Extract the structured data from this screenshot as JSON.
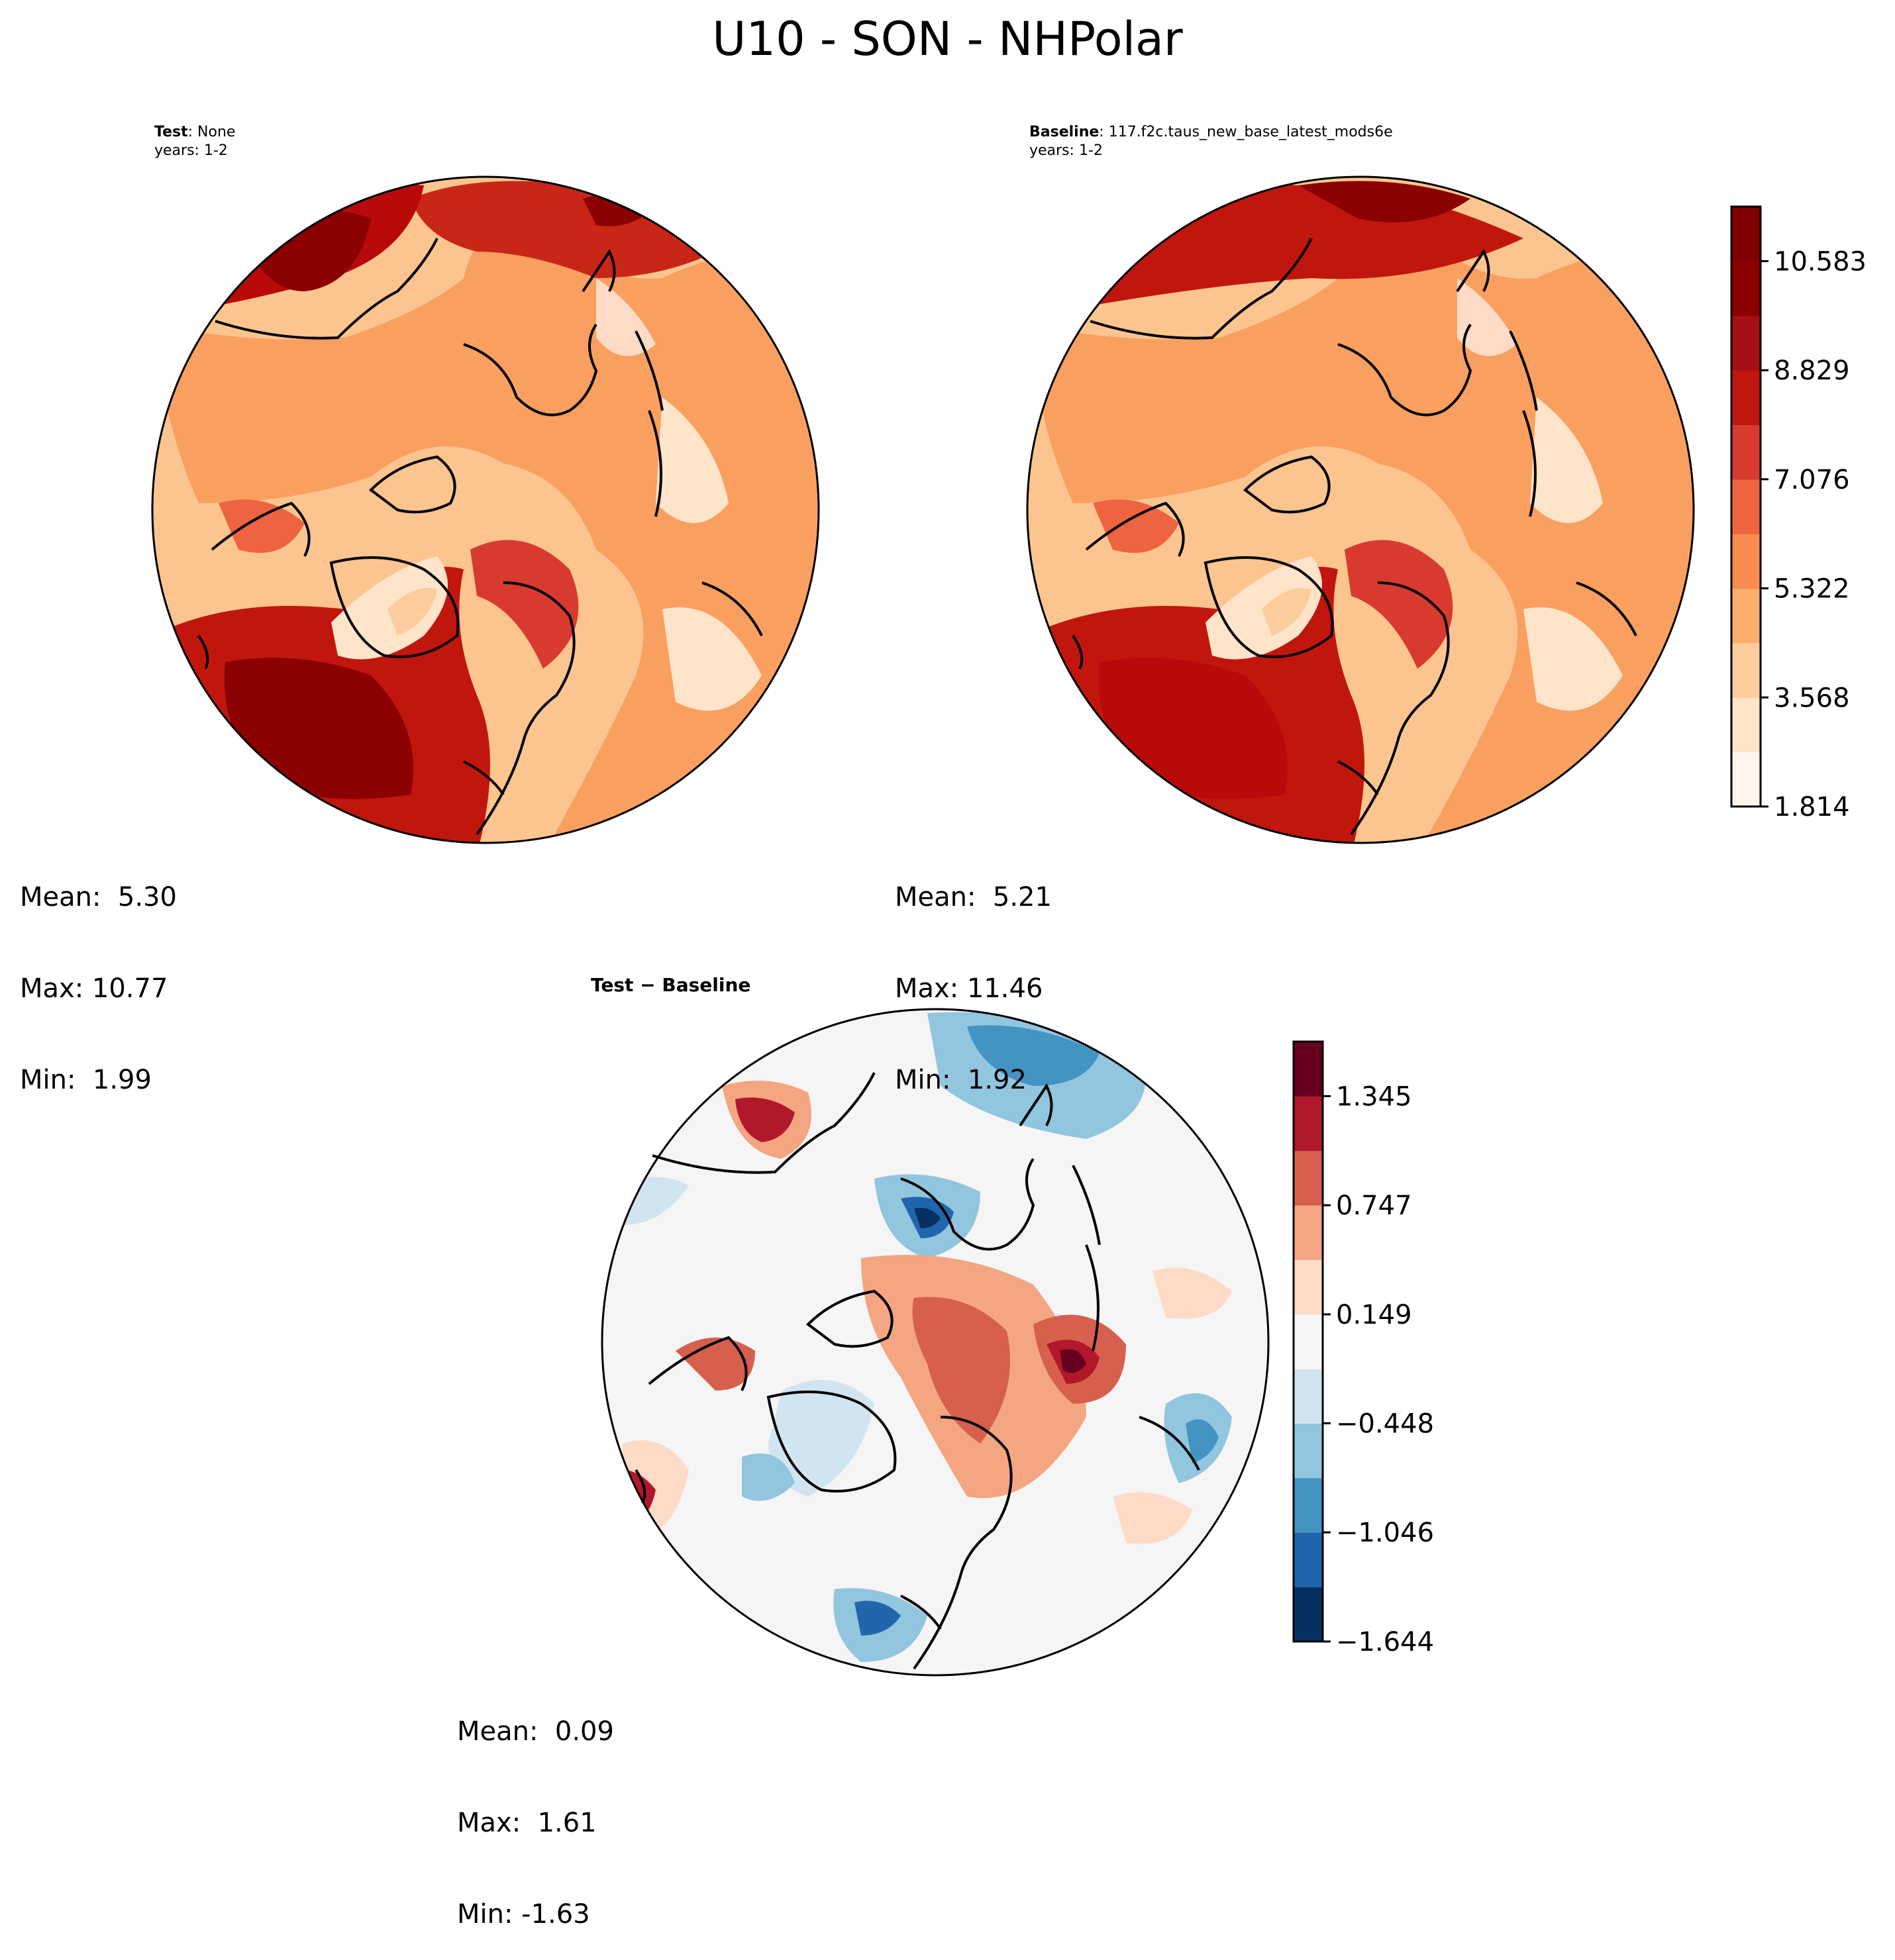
{
  "title": "U10 - SON - NHPolar",
  "panels": {
    "test": {
      "label_bold": "Test",
      "label_rest": ": None",
      "years": "years: 1-2",
      "mean": "Mean:  5.30",
      "max": "Max: 10.77",
      "min": "Min:  1.99"
    },
    "baseline": {
      "label_bold": "Baseline",
      "label_rest": ": 117.f2c.taus_new_base_latest_mods6e",
      "years": "years: 1-2",
      "mean": "Mean:  5.21",
      "max": "Max: 11.46",
      "min": "Min:  1.92"
    },
    "diff": {
      "label": "Test − Baseline",
      "mean": "Mean:  0.09",
      "max": "Max:  1.61",
      "min": "Min: -1.63"
    }
  },
  "colors": {
    "main_levels": [
      "#fff5eb",
      "#fee4c9",
      "#fdcc9d",
      "#fcae6b",
      "#f98c4e",
      "#ee6441",
      "#d83a2f",
      "#c0160e",
      "#a50f15",
      "#8b0000",
      "#7f0000"
    ],
    "diff_levels": [
      "#053061",
      "#2166ac",
      "#4393c3",
      "#92c5de",
      "#d1e5f0",
      "#f5f5f5",
      "#fddbc7",
      "#f4a582",
      "#d6604d",
      "#b2182b",
      "#67001f"
    ]
  },
  "chart_data": [
    {
      "type": "heatmap",
      "name": "test",
      "projection": "north polar stereographic",
      "stats": {
        "mean": 5.3,
        "max": 10.77,
        "min": 1.99
      },
      "colorbar": {
        "min": 1.814,
        "max": 11.46
      }
    },
    {
      "type": "heatmap",
      "name": "baseline",
      "projection": "north polar stereographic",
      "stats": {
        "mean": 5.21,
        "max": 11.46,
        "min": 1.92
      },
      "colorbar": {
        "ticks": [
          "1.814",
          "3.568",
          "5.322",
          "7.076",
          "8.829",
          "10.583"
        ],
        "tick_values": [
          1.814,
          3.568,
          5.322,
          7.076,
          8.829,
          10.583
        ],
        "range": [
          1.814,
          11.46
        ],
        "levels": 11
      }
    },
    {
      "type": "heatmap",
      "name": "difference",
      "projection": "north polar stereographic",
      "stats": {
        "mean": 0.09,
        "max": 1.61,
        "min": -1.63
      },
      "colorbar": {
        "ticks": [
          "−1.644",
          "−1.046",
          "−0.448",
          "0.149",
          "0.747",
          "1.345"
        ],
        "tick_values": [
          -1.644,
          -1.046,
          -0.448,
          0.149,
          0.747,
          1.345
        ],
        "range": [
          -1.644,
          1.644
        ],
        "levels": 11
      }
    }
  ]
}
